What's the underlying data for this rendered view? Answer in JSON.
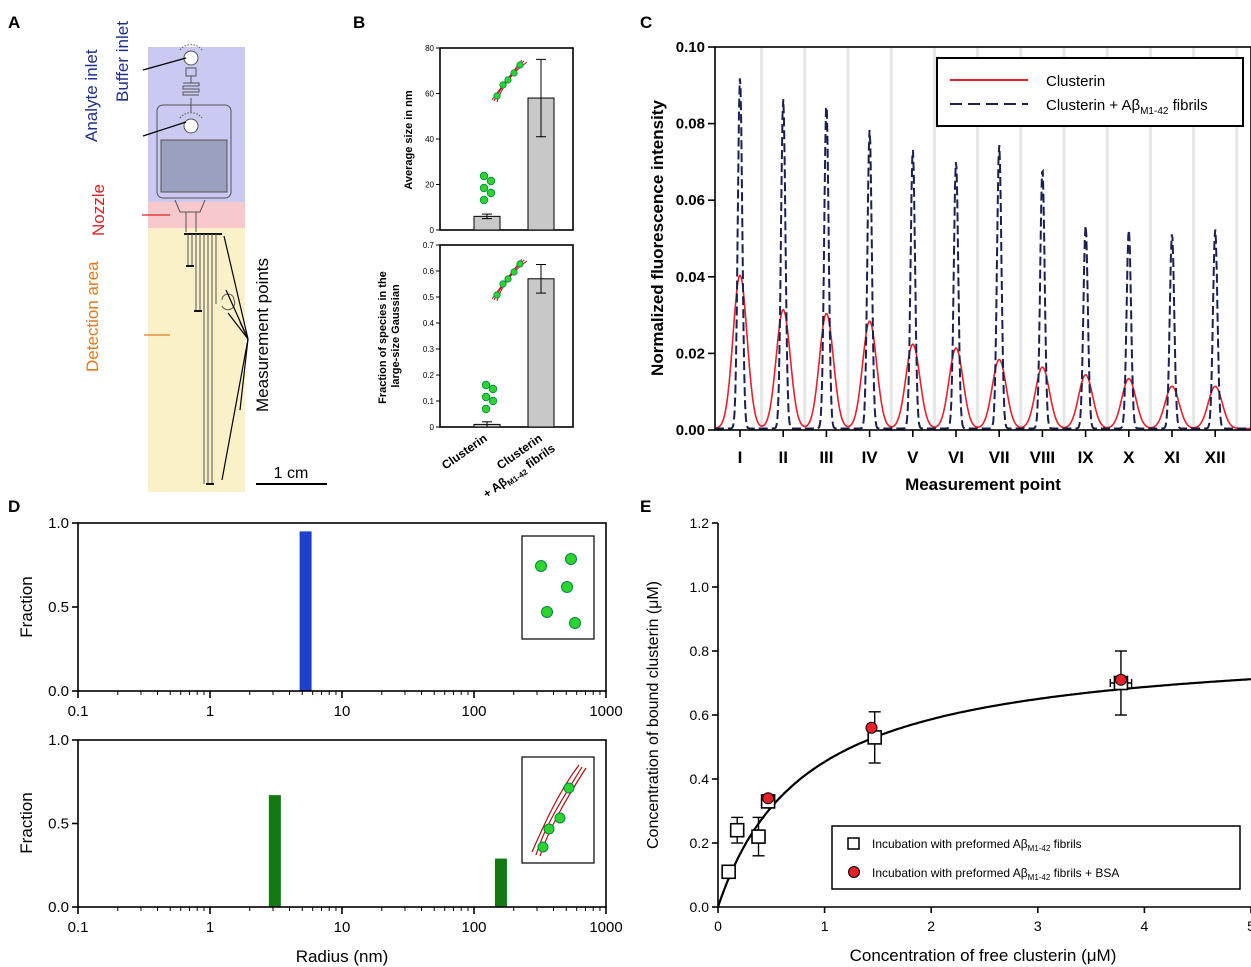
{
  "panel_labels": {
    "a": "A",
    "b": "B",
    "c": "C",
    "d": "D",
    "e": "E"
  },
  "panel_a": {
    "buffer_inlet": "Buffer inlet",
    "analyte_inlet": "Analyte inlet",
    "nozzle": "Nozzle",
    "detection_area": "Detection area",
    "measurement_points": "Measurement points",
    "scale_bar": "1 cm",
    "colors": {
      "buffer_region": "#c9c9f2",
      "nozzle_region": "#f7c9cc",
      "detection_region": "#fbf1c9",
      "blue_text": "#1f2f8f",
      "red_text": "#e02020",
      "orange_text": "#e07a20"
    }
  },
  "chart_data": [
    {
      "id": "B-top",
      "type": "bar",
      "ylabel": "Average size in nm",
      "ylim": [
        0,
        80
      ],
      "yticks": [
        0,
        20,
        40,
        60,
        80
      ],
      "categories": [
        "Clusterin",
        "Clusterin + Aβ fibrils"
      ],
      "values": [
        6,
        58
      ],
      "errors": [
        1,
        17
      ],
      "bar_color": "#c8c8c8"
    },
    {
      "id": "B-bottom",
      "type": "bar",
      "ylabel": "Fraction of species in the large-size Gaussian",
      "ylim": [
        0,
        0.7
      ],
      "yticks": [
        0,
        0.1,
        0.2,
        0.3,
        0.4,
        0.5,
        0.6,
        0.7
      ],
      "categories": [
        "Clusterin",
        "Clusterin + Aβ fibrils"
      ],
      "category_labels": {
        "c1": "Clusterin",
        "c2_line1": "Clusterin",
        "c2_line2_pre": "+ Aβ",
        "c2_sub": "M1-42",
        "c2_post": " fibrils"
      },
      "values": [
        0.01,
        0.57
      ],
      "errors": [
        0.01,
        0.055
      ],
      "bar_color": "#c8c8c8"
    },
    {
      "id": "C",
      "type": "line",
      "xlabel": "Measurement point",
      "ylabel": "Normalized fluorescence intensity",
      "ylim": [
        0,
        0.1
      ],
      "yticks": [
        "0.00",
        "0.02",
        "0.04",
        "0.06",
        "0.08",
        "0.10"
      ],
      "categories": [
        "I",
        "II",
        "III",
        "IV",
        "V",
        "VI",
        "VII",
        "VIII",
        "IX",
        "X",
        "XI",
        "XII"
      ],
      "series": [
        {
          "name": "Clusterin",
          "color": "#e8202a",
          "dash": "solid",
          "peaks": [
            0.04,
            0.031,
            0.03,
            0.028,
            0.022,
            0.021,
            0.018,
            0.016,
            0.014,
            0.013,
            0.011,
            0.011
          ]
        },
        {
          "name": "Clusterin + Aβ fibrils",
          "color": "#1a2050",
          "dash": "dashed",
          "peaks": [
            0.092,
            0.086,
            0.085,
            0.078,
            0.073,
            0.07,
            0.074,
            0.068,
            0.053,
            0.052,
            0.051,
            0.052
          ]
        }
      ],
      "legend": {
        "placement": "top-right",
        "l1": "Clusterin",
        "l2_pre": "Clusterin + Aβ",
        "l2_sub": "M1-42",
        "l2_post": " fibrils"
      }
    },
    {
      "id": "D-top",
      "type": "bar",
      "xscale": "log",
      "xlim": [
        0.1,
        1000
      ],
      "xticks": [
        "0.1",
        "1",
        "10",
        "100",
        "1000"
      ],
      "ylabel": "Fraction",
      "ylim": [
        0,
        1
      ],
      "yticks": [
        "0.0",
        "0.5",
        "1.0"
      ],
      "bars": [
        {
          "x": 5.3,
          "value": 0.95
        }
      ],
      "bar_color": "#1f3fd0"
    },
    {
      "id": "D-bottom",
      "type": "bar",
      "xscale": "log",
      "xlim": [
        0.1,
        1000
      ],
      "xticks": [
        "0.1",
        "1",
        "10",
        "100",
        "1000"
      ],
      "xlabel": "Radius (nm)",
      "ylabel": "Fraction",
      "ylim": [
        0,
        1
      ],
      "yticks": [
        "0.0",
        "0.5",
        "1.0"
      ],
      "bars": [
        {
          "x": 3.1,
          "value": 0.67
        },
        {
          "x": 160,
          "value": 0.29
        }
      ],
      "bar_color": "#137a13"
    },
    {
      "id": "E",
      "type": "scatter",
      "xlabel": "Concentration of free clusterin (μM)",
      "ylabel": "Concentration of bound clusterin (μM)",
      "xlim": [
        0,
        5
      ],
      "ylim": [
        0,
        1.2
      ],
      "xticks": [
        "0",
        "1",
        "2",
        "3",
        "4",
        "5"
      ],
      "yticks": [
        "0.0",
        "0.2",
        "0.4",
        "0.6",
        "0.8",
        "1.0",
        "1.2"
      ],
      "series": [
        {
          "name": "Incubation with preformed Aβ fibrils",
          "marker": "open-square",
          "points": [
            [
              0.1,
              0.11,
              0,
              0
            ],
            [
              0.18,
              0.24,
              0.05,
              0.04
            ],
            [
              0.38,
              0.22,
              0.06,
              0.06
            ],
            [
              0.47,
              0.33,
              0.03,
              0.02
            ],
            [
              1.47,
              0.53,
              0.05,
              0.08
            ],
            [
              3.78,
              0.7,
              0.1,
              0.1
            ]
          ]
        },
        {
          "name": "Incubation with preformed Aβ fibrils + BSA",
          "marker": "red-circle",
          "points": [
            [
              0.47,
              0.34
            ],
            [
              1.44,
              0.56
            ],
            [
              3.78,
              0.71
            ]
          ]
        }
      ],
      "fit": {
        "bmax": 0.83,
        "kd": 0.83
      },
      "legend": {
        "placement": "bottom-right",
        "l1_pre": "Incubation with preformed Aβ",
        "l1_sub": "M1-42",
        "l1_post": " fibrils",
        "l2_pre": "Incubation with preformed Aβ",
        "l2_sub": "M1-42",
        "l2_post": " fibrils + BSA"
      }
    }
  ]
}
